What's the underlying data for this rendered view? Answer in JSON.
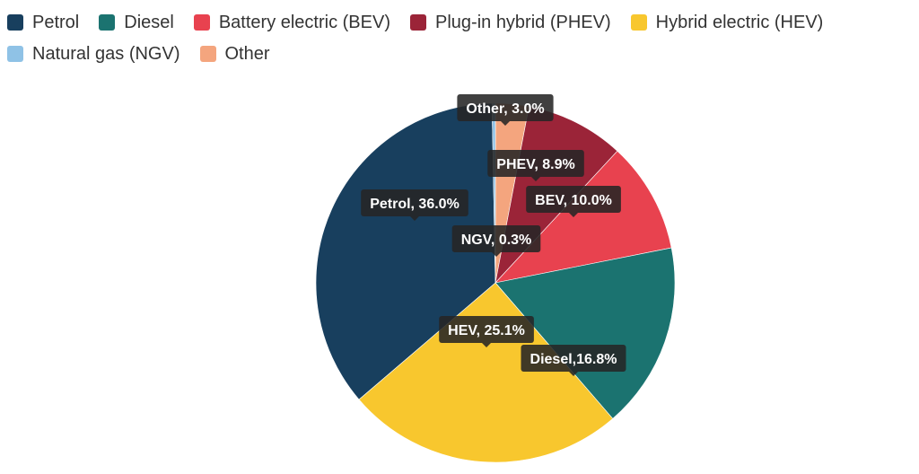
{
  "chart_data": {
    "type": "pie",
    "legend_position": "top-left",
    "start_angle_deg": 0,
    "direction": "clockwise",
    "slices": [
      {
        "name": "Other",
        "legend_label": "Other",
        "label": "Other, 3.0%",
        "value": 3.0,
        "color": "#f4a57e"
      },
      {
        "name": "PHEV",
        "legend_label": "Plug-in hybrid (PHEV)",
        "label": "PHEV, 8.9%",
        "value": 8.9,
        "color": "#9b2438"
      },
      {
        "name": "BEV",
        "legend_label": "Battery electric (BEV)",
        "label": "BEV, 10.0%",
        "value": 10.0,
        "color": "#e8424f"
      },
      {
        "name": "Diesel",
        "legend_label": "Diesel",
        "label": "Diesel,16.8%",
        "value": 16.8,
        "color": "#1b7370"
      },
      {
        "name": "HEV",
        "legend_label": "Hybrid electric (HEV)",
        "label": "HEV, 25.1%",
        "value": 25.1,
        "color": "#f8c72e"
      },
      {
        "name": "Petrol",
        "legend_label": "Petrol",
        "label": "Petrol, 36.0%",
        "value": 36.0,
        "color": "#183f5e"
      },
      {
        "name": "NGV",
        "legend_label": "Natural gas (NGV)",
        "label": "NGV, 0.3%",
        "value": 0.3,
        "color": "#8fc2e6"
      }
    ],
    "legend_order": [
      "Petrol",
      "Diesel",
      "BEV",
      "PHEV",
      "HEV",
      "NGV",
      "Other"
    ]
  }
}
